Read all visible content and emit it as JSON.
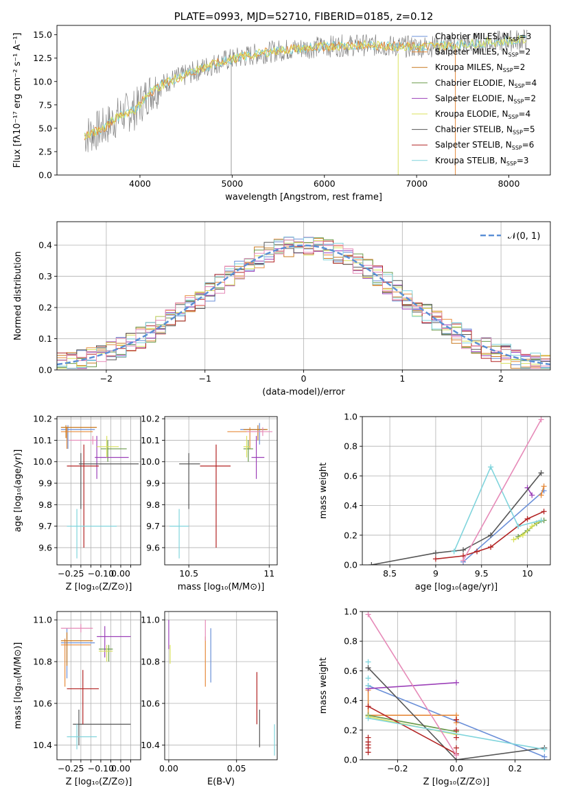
{
  "colors": {
    "Chabrier MILES": "#6a8fd8",
    "Salpeter MILES": "#e68a3a",
    "Kroupa MILES": "#c8781e",
    "Chabrier ELODIE": "#6a9a4a",
    "Salpeter ELODIE": "#9b3fb8",
    "Kroupa ELODIE": "#d8e05a",
    "Chabrier STELIB": "#555555",
    "Salpeter STELIB": "#b22222",
    "Kroupa STELIB": "#7fd4dc",
    "Kroupa MILES 2": "#e68ab8"
  },
  "chart_data": [
    {
      "id": "spectrum",
      "type": "line",
      "title": "PLATE=0993, MJD=52710, FIBERID=0185, z=0.12",
      "xlabel": "wavelength [Angstrom, rest frame]",
      "ylabel_html": "Flux [fλ10⁻¹⁷ erg cm⁻² s⁻¹ A⁻¹]",
      "xlim": [
        3100,
        8450
      ],
      "ylim": [
        0,
        16
      ],
      "xticks": [
        4000,
        5000,
        6000,
        7000,
        8000
      ],
      "yticks": [
        0.0,
        2.5,
        5.0,
        7.5,
        10.0,
        12.5,
        15.0
      ],
      "legend": "top-right",
      "legend_entries": [
        {
          "label": "Chabrier MILES, N",
          "sub": "SSP",
          "tail": "=3",
          "color_key": "Chabrier MILES"
        },
        {
          "label": "Salpeter MILES, N",
          "sub": "SSP",
          "tail": "=2",
          "color_key": "Salpeter MILES"
        },
        {
          "label": "Kroupa MILES, N",
          "sub": "SSP",
          "tail": "=2",
          "color_key": "Kroupa MILES"
        },
        {
          "label": "Chabrier ELODIE, N",
          "sub": "SSP",
          "tail": "=4",
          "color_key": "Chabrier ELODIE"
        },
        {
          "label": "Salpeter ELODIE, N",
          "sub": "SSP",
          "tail": "=2",
          "color_key": "Salpeter ELODIE"
        },
        {
          "label": "Kroupa ELODIE, N",
          "sub": "SSP",
          "tail": "=4",
          "color_key": "Kroupa ELODIE"
        },
        {
          "label": "Chabrier STELIB, N",
          "sub": "SSP",
          "tail": "=5",
          "color_key": "Chabrier STELIB"
        },
        {
          "label": "Salpeter STELIB, N",
          "sub": "SSP",
          "tail": "=6",
          "color_key": "Salpeter STELIB"
        },
        {
          "label": "Kroupa STELIB, N",
          "sub": "SSP",
          "tail": "=3",
          "color_key": "Kroupa STELIB"
        }
      ],
      "continuum_x": [
        3400,
        3600,
        3800,
        3950,
        4100,
        4300,
        4500,
        4700,
        4900,
        5100,
        5300,
        5500,
        5800,
        6100,
        6400,
        6700,
        7000,
        7400,
        7800,
        8200
      ],
      "continuum_y": [
        4.2,
        5.0,
        6.5,
        7.0,
        8.8,
        10.0,
        10.7,
        11.5,
        12.2,
        12.6,
        13.0,
        13.3,
        13.6,
        13.8,
        13.9,
        13.8,
        13.7,
        13.9,
        14.2,
        14.5
      ]
    },
    {
      "id": "residuals",
      "type": "line",
      "xlabel": "(data-model)/error",
      "ylabel": "Normed distribution",
      "xlim": [
        -2.5,
        2.5
      ],
      "ylim": [
        0,
        0.475
      ],
      "xticks": [
        -2,
        -1,
        0,
        1,
        2
      ],
      "yticks": [
        0.0,
        0.1,
        0.2,
        0.3,
        0.4
      ],
      "legend": "top-right",
      "legend_label": "𝒩(0, 1)",
      "gaussian": {
        "mean": 0,
        "sigma": 1,
        "color": "#5b8fd6"
      }
    },
    {
      "id": "age-vs-Z",
      "type": "scatter",
      "xlabel": "Z [log₁₀(Z/Z⊙)]",
      "ylabel": "age  [log₁₀(age/yr)]",
      "xlim": [
        -0.32,
        0.1
      ],
      "ylim": [
        9.52,
        10.21
      ],
      "xticks": [
        -0.25,
        -0.2,
        -0.15,
        -0.1,
        -0.05,
        0.0,
        0.05
      ],
      "xticklabels": [
        "−0.25",
        "",
        "",
        "−0.10",
        "",
        "0.00",
        ""
      ],
      "yticks": [
        9.6,
        9.7,
        9.8,
        9.9,
        10.0,
        10.1,
        10.2
      ],
      "points": [
        {
          "c": "Chabrier MILES",
          "x": -0.265,
          "y": 10.15,
          "xe": [
            -0.3,
            -0.13
          ],
          "ye": [
            10.06,
            10.17
          ]
        },
        {
          "c": "Salpeter MILES",
          "x": -0.27,
          "y": 10.14,
          "xe": [
            -0.3,
            -0.14
          ],
          "ye": [
            10.06,
            10.16
          ]
        },
        {
          "c": "Kroupa MILES",
          "x": -0.275,
          "y": 10.16,
          "xe": [
            -0.3,
            -0.12
          ],
          "ye": [
            10.11,
            10.17
          ]
        },
        {
          "c": "Chabrier ELODIE",
          "x": -0.065,
          "y": 10.06,
          "xe": [
            -0.1,
            0.03
          ],
          "ye": [
            10.0,
            10.1
          ]
        },
        {
          "c": "Salpeter ELODIE",
          "x": -0.12,
          "y": 10.02,
          "xe": [
            -0.13,
            0.04
          ],
          "ye": [
            9.92,
            10.12
          ]
        },
        {
          "c": "Kroupa ELODIE",
          "x": -0.07,
          "y": 10.07,
          "xe": [
            -0.12,
            -0.01
          ],
          "ye": [
            10.02,
            10.12
          ]
        },
        {
          "c": "Chabrier STELIB",
          "x": -0.2,
          "y": 9.99,
          "xe": [
            -0.21,
            0.09
          ],
          "ye": [
            9.78,
            10.04
          ]
        },
        {
          "c": "Salpeter STELIB",
          "x": -0.185,
          "y": 9.98,
          "xe": [
            -0.27,
            -0.11
          ],
          "ye": [
            9.6,
            10.08
          ]
        },
        {
          "c": "Kroupa STELIB",
          "x": -0.22,
          "y": 9.7,
          "xe": [
            -0.27,
            -0.02
          ],
          "ye": [
            9.55,
            9.78
          ]
        },
        {
          "c": "Kroupa MILES 2",
          "x": -0.14,
          "y": 10.1,
          "xe": [
            -0.26,
            -0.12
          ],
          "ye": [
            10.08,
            10.12
          ]
        }
      ]
    },
    {
      "id": "age-vs-mass",
      "type": "scatter",
      "xlabel": "mass [log₁₀(M/M⊙)]",
      "xlim": [
        10.35,
        11.05
      ],
      "ylim": [
        9.52,
        10.21
      ],
      "xticks": [
        10.5,
        11.0
      ],
      "yticks": [
        9.6,
        9.7,
        9.8,
        9.9,
        10.0,
        10.1,
        10.2
      ],
      "points": [
        {
          "c": "Chabrier MILES",
          "x": 10.94,
          "y": 10.15,
          "xe": [
            10.82,
            10.98
          ],
          "ye": [
            10.08,
            10.18
          ]
        },
        {
          "c": "Salpeter MILES",
          "x": 10.88,
          "y": 10.14,
          "xe": [
            10.74,
            10.96
          ],
          "ye": [
            10.06,
            10.16
          ]
        },
        {
          "c": "Kroupa MILES",
          "x": 10.93,
          "y": 10.15,
          "xe": [
            10.84,
            10.99
          ],
          "ye": [
            10.1,
            10.17
          ]
        },
        {
          "c": "Chabrier ELODIE",
          "x": 10.87,
          "y": 10.06,
          "xe": [
            10.84,
            10.9
          ],
          "ye": [
            10.0,
            10.1
          ]
        },
        {
          "c": "Salpeter ELODIE",
          "x": 10.92,
          "y": 10.02,
          "xe": [
            10.89,
            10.97
          ],
          "ye": [
            9.92,
            10.12
          ]
        },
        {
          "c": "Kroupa ELODIE",
          "x": 10.86,
          "y": 10.07,
          "xe": [
            10.84,
            10.88
          ],
          "ye": [
            10.02,
            10.12
          ]
        },
        {
          "c": "Chabrier STELIB",
          "x": 10.5,
          "y": 9.99,
          "xe": [
            10.44,
            10.57
          ],
          "ye": [
            9.78,
            10.04
          ]
        },
        {
          "c": "Salpeter STELIB",
          "x": 10.67,
          "y": 9.98,
          "xe": [
            10.57,
            10.76
          ],
          "ye": [
            9.6,
            10.08
          ]
        },
        {
          "c": "Kroupa STELIB",
          "x": 10.44,
          "y": 9.7,
          "xe": [
            10.38,
            10.5
          ],
          "ye": [
            9.55,
            9.78
          ]
        },
        {
          "c": "Kroupa MILES 2",
          "x": 10.96,
          "y": 10.14,
          "xe": [
            10.86,
            11.02
          ],
          "ye": [
            10.12,
            10.16
          ]
        }
      ]
    },
    {
      "id": "weight-vs-age",
      "type": "line",
      "xlabel": "age  [log₁₀(age/yr)]",
      "ylabel": "mass weight",
      "xlim": [
        8.2,
        10.25
      ],
      "ylim": [
        0,
        1.0
      ],
      "xticks": [
        8.5,
        9.0,
        9.5,
        10.0
      ],
      "yticks": [
        0.0,
        0.2,
        0.4,
        0.6,
        0.8,
        1.0
      ],
      "series": [
        {
          "c": "Chabrier MILES",
          "x": [
            9.3,
            10.18
          ],
          "y": [
            0.02,
            0.5
          ]
        },
        {
          "c": "Salpeter MILES",
          "x": [
            10.15,
            10.18
          ],
          "y": [
            0.47,
            0.53
          ]
        },
        {
          "c": "Chabrier ELODIE",
          "x": [
            9.9,
            10.0,
            10.1,
            10.18
          ],
          "y": [
            0.19,
            0.23,
            0.28,
            0.3
          ]
        },
        {
          "c": "Salpeter ELODIE",
          "x": [
            10.0,
            10.05
          ],
          "y": [
            0.52,
            0.47
          ]
        },
        {
          "c": "Kroupa ELODIE",
          "x": [
            9.85,
            9.95,
            10.05,
            10.15
          ],
          "y": [
            0.17,
            0.2,
            0.26,
            0.3
          ]
        },
        {
          "c": "Chabrier STELIB",
          "x": [
            8.3,
            9.0,
            9.3,
            9.6,
            10.15
          ],
          "y": [
            0.0,
            0.08,
            0.1,
            0.2,
            0.62
          ]
        },
        {
          "c": "Salpeter STELIB",
          "x": [
            9.0,
            9.3,
            9.45,
            9.6,
            10.0,
            10.18
          ],
          "y": [
            0.04,
            0.06,
            0.09,
            0.12,
            0.31,
            0.36
          ]
        },
        {
          "c": "Kroupa STELIB",
          "x": [
            9.2,
            9.6,
            9.9,
            10.15
          ],
          "y": [
            0.09,
            0.66,
            0.26,
            0.3
          ]
        },
        {
          "c": "Kroupa MILES 2",
          "x": [
            9.3,
            10.15
          ],
          "y": [
            0.03,
            0.98
          ]
        }
      ]
    },
    {
      "id": "mass-vs-Z",
      "type": "scatter",
      "xlabel": "Z [log₁₀(Z/Z⊙)]",
      "ylabel": "mass [log₁₀(M/M⊙)]",
      "xlim": [
        -0.32,
        0.1
      ],
      "ylim": [
        10.33,
        11.04
      ],
      "xticks": [
        -0.25,
        -0.2,
        -0.15,
        -0.1,
        -0.05,
        0.0,
        0.05
      ],
      "xticklabels": [
        "−0.25",
        "",
        "",
        "−0.10",
        "",
        "0.00",
        ""
      ],
      "yticks": [
        10.4,
        10.6,
        10.8,
        11.0
      ],
      "points": [
        {
          "c": "Chabrier MILES",
          "x": -0.27,
          "y": 10.89,
          "xe": [
            -0.3,
            -0.13
          ],
          "ye": [
            10.72,
            10.96
          ]
        },
        {
          "c": "Salpeter MILES",
          "x": -0.28,
          "y": 10.88,
          "xe": [
            -0.3,
            -0.15
          ],
          "ye": [
            10.68,
            10.91
          ]
        },
        {
          "c": "Kroupa MILES",
          "x": -0.27,
          "y": 10.9,
          "xe": [
            -0.3,
            -0.14
          ],
          "ye": [
            10.78,
            10.94
          ]
        },
        {
          "c": "Chabrier ELODIE",
          "x": -0.06,
          "y": 10.86,
          "xe": [
            -0.11,
            -0.04
          ],
          "ye": [
            10.8,
            10.88
          ]
        },
        {
          "c": "Salpeter ELODIE",
          "x": -0.08,
          "y": 10.92,
          "xe": [
            -0.12,
            0.05
          ],
          "ye": [
            10.82,
            10.97
          ]
        },
        {
          "c": "Kroupa ELODIE",
          "x": -0.07,
          "y": 10.85,
          "xe": [
            -0.11,
            -0.04
          ],
          "ye": [
            10.8,
            10.88
          ]
        },
        {
          "c": "Chabrier STELIB",
          "x": -0.21,
          "y": 10.5,
          "xe": [
            -0.24,
            0.05
          ],
          "ye": [
            10.4,
            10.57
          ]
        },
        {
          "c": "Salpeter STELIB",
          "x": -0.19,
          "y": 10.67,
          "xe": [
            -0.27,
            -0.11
          ],
          "ye": [
            10.5,
            10.76
          ]
        },
        {
          "c": "Kroupa STELIB",
          "x": -0.22,
          "y": 10.44,
          "xe": [
            -0.27,
            -0.12
          ],
          "ye": [
            10.38,
            10.5
          ]
        },
        {
          "c": "Kroupa MILES 2",
          "x": -0.2,
          "y": 10.96,
          "xe": [
            -0.3,
            -0.14
          ],
          "ye": [
            10.94,
            10.98
          ]
        }
      ]
    },
    {
      "id": "mass-vs-ebv",
      "type": "scatter",
      "xlabel": "E(B-V)",
      "xlim": [
        -0.003,
        0.08
      ],
      "ylim": [
        10.33,
        11.04
      ],
      "xticks": [
        0.0,
        0.05
      ],
      "xticklabels": [
        "0.00",
        "0.05"
      ],
      "yticks": [
        10.4,
        10.6,
        10.8,
        11.0
      ],
      "points": [
        {
          "c": "Chabrier MILES",
          "x": 0.031,
          "y": 10.88,
          "ye": [
            10.7,
            10.96
          ]
        },
        {
          "c": "Salpeter MILES",
          "x": 0.027,
          "y": 10.87,
          "ye": [
            10.68,
            10.92
          ]
        },
        {
          "c": "Salpeter ELODIE",
          "x": 0.0,
          "y": 10.95,
          "ye": [
            10.86,
            11.0
          ]
        },
        {
          "c": "Kroupa ELODIE",
          "x": 0.001,
          "y": 10.84,
          "ye": [
            10.79,
            10.88
          ]
        },
        {
          "c": "Chabrier STELIB",
          "x": 0.067,
          "y": 10.5,
          "ye": [
            10.39,
            10.57
          ]
        },
        {
          "c": "Salpeter STELIB",
          "x": 0.065,
          "y": 10.67,
          "ye": [
            10.5,
            10.75
          ]
        },
        {
          "c": "Kroupa STELIB",
          "x": 0.078,
          "y": 10.44,
          "ye": [
            10.35,
            10.5
          ]
        },
        {
          "c": "Kroupa MILES 2",
          "x": 0.027,
          "y": 10.96,
          "ye": [
            10.9,
            11.0
          ]
        }
      ]
    },
    {
      "id": "weight-vs-Z",
      "type": "line",
      "xlabel": "Z [log₁₀(Z/Z⊙)]",
      "ylabel": "mass weight",
      "xlim": [
        -0.32,
        0.32
      ],
      "ylim": [
        0,
        1.0
      ],
      "xticks": [
        -0.2,
        0.0,
        0.2
      ],
      "xticklabels": [
        "−0.2",
        "0.0",
        "0.2"
      ],
      "yticks": [
        0.0,
        0.2,
        0.4,
        0.6,
        0.8,
        1.0
      ],
      "series": [
        {
          "c": "Chabrier MILES",
          "x": [
            -0.3,
            0.3
          ],
          "y": [
            0.5,
            0.02
          ]
        },
        {
          "c": "Salpeter MILES",
          "x": [
            -0.3,
            -0.3,
            0.0,
            0.0
          ],
          "y": [
            0.47,
            0.3,
            0.3,
            0.25
          ]
        },
        {
          "c": "Chabrier ELODIE",
          "x": [
            -0.3,
            0.0
          ],
          "y": [
            0.3,
            0.19
          ]
        },
        {
          "c": "Salpeter ELODIE",
          "x": [
            -0.3,
            0.0
          ],
          "y": [
            0.48,
            0.52
          ]
        },
        {
          "c": "Kroupa ELODIE",
          "x": [
            -0.3,
            0.0
          ],
          "y": [
            0.29,
            0.17
          ]
        },
        {
          "c": "Chabrier STELIB",
          "x": [
            -0.3,
            0.0,
            0.3
          ],
          "y": [
            0.62,
            0.0,
            0.08
          ]
        },
        {
          "c": "Salpeter STELIB",
          "x": [
            -0.3,
            0.0
          ],
          "y": [
            0.36,
            0.04
          ]
        },
        {
          "c": "Kroupa STELIB",
          "x": [
            -0.3,
            0.3
          ],
          "y": [
            0.28,
            0.07
          ]
        },
        {
          "c": "Kroupa MILES 2",
          "x": [
            -0.3,
            0.0
          ],
          "y": [
            0.98,
            0.03
          ]
        }
      ],
      "ticks_at_zero": [
        {
          "c": "Salpeter STELIB",
          "x": -0.3,
          "y": [
            0.05,
            0.08,
            0.1,
            0.12,
            0.15
          ]
        },
        {
          "c": "Salpeter STELIB",
          "x": 0.0,
          "y": [
            0.08,
            0.15,
            0.2,
            0.27
          ]
        },
        {
          "c": "Kroupa STELIB",
          "x": -0.3,
          "y": [
            0.5,
            0.55,
            0.66
          ]
        }
      ]
    }
  ]
}
